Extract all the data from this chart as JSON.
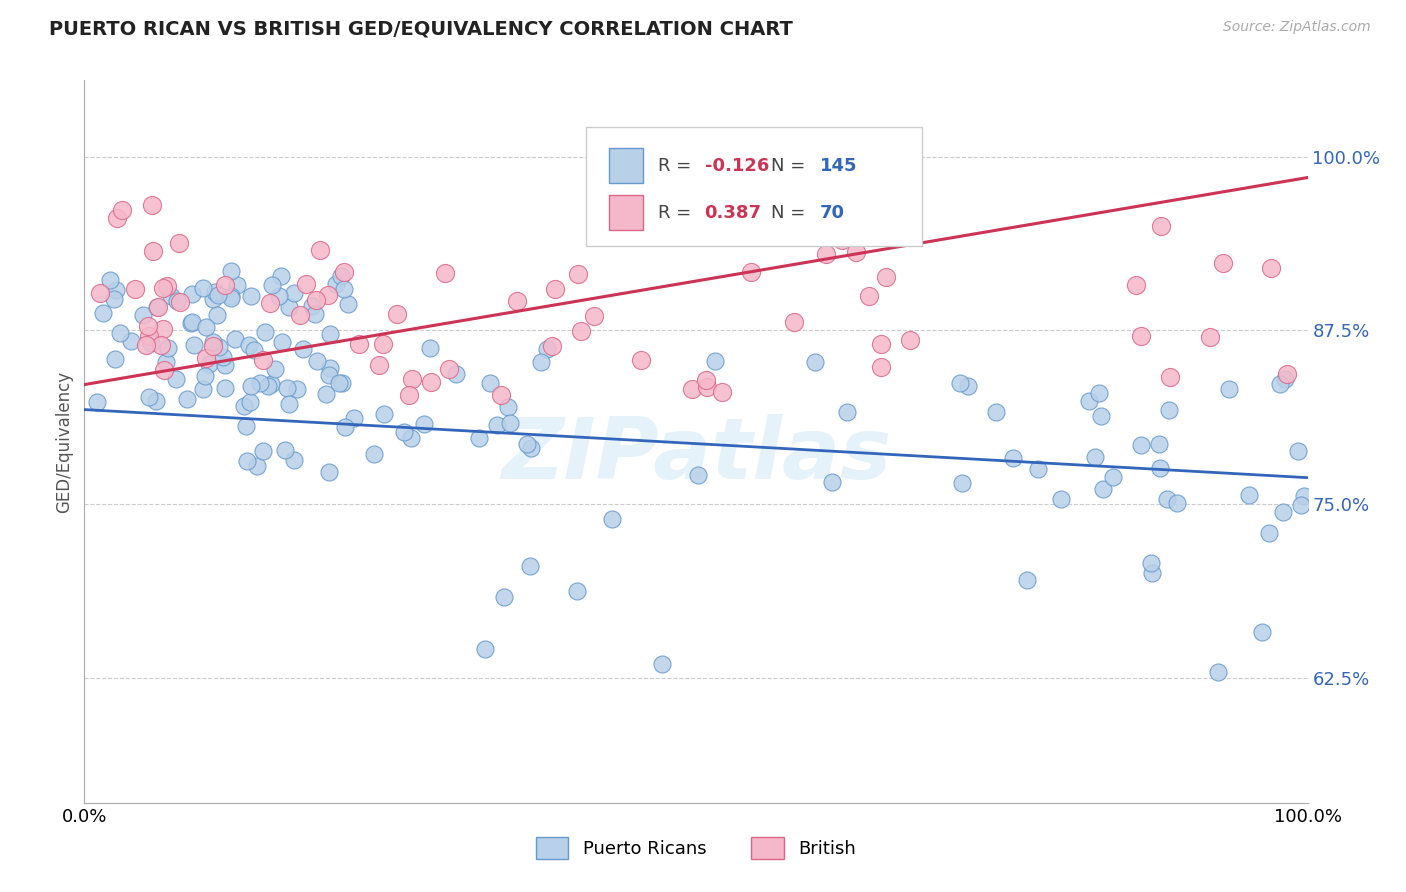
{
  "title": "PUERTO RICAN VS BRITISH GED/EQUIVALENCY CORRELATION CHART",
  "source": "Source: ZipAtlas.com",
  "ylabel": "GED/Equivalency",
  "yticks": [
    0.625,
    0.75,
    0.875,
    1.0
  ],
  "ytick_labels": [
    "62.5%",
    "75.0%",
    "87.5%",
    "100.0%"
  ],
  "xmin": 0.0,
  "xmax": 1.0,
  "ymin": 0.535,
  "ymax": 1.055,
  "blue_R": -0.126,
  "blue_N": 145,
  "pink_R": 0.387,
  "pink_N": 70,
  "blue_fill": "#b8d0e8",
  "blue_edge": "#6699cc",
  "pink_fill": "#f5b8ca",
  "pink_edge": "#dd6688",
  "blue_line_color": "#3366bb",
  "pink_line_color": "#cc3355",
  "legend_label_blue": "Puerto Ricans",
  "legend_label_pink": "British",
  "background_color": "#ffffff",
  "grid_color": "#cccccc",
  "title_color": "#222222",
  "R_value_color": "#cc3355",
  "N_value_color": "#3366bb",
  "watermark_color": "#d0e8f5",
  "blue_line_y0": 0.818,
  "blue_line_y1": 0.769,
  "pink_line_y0": 0.836,
  "pink_line_y1": 0.985
}
